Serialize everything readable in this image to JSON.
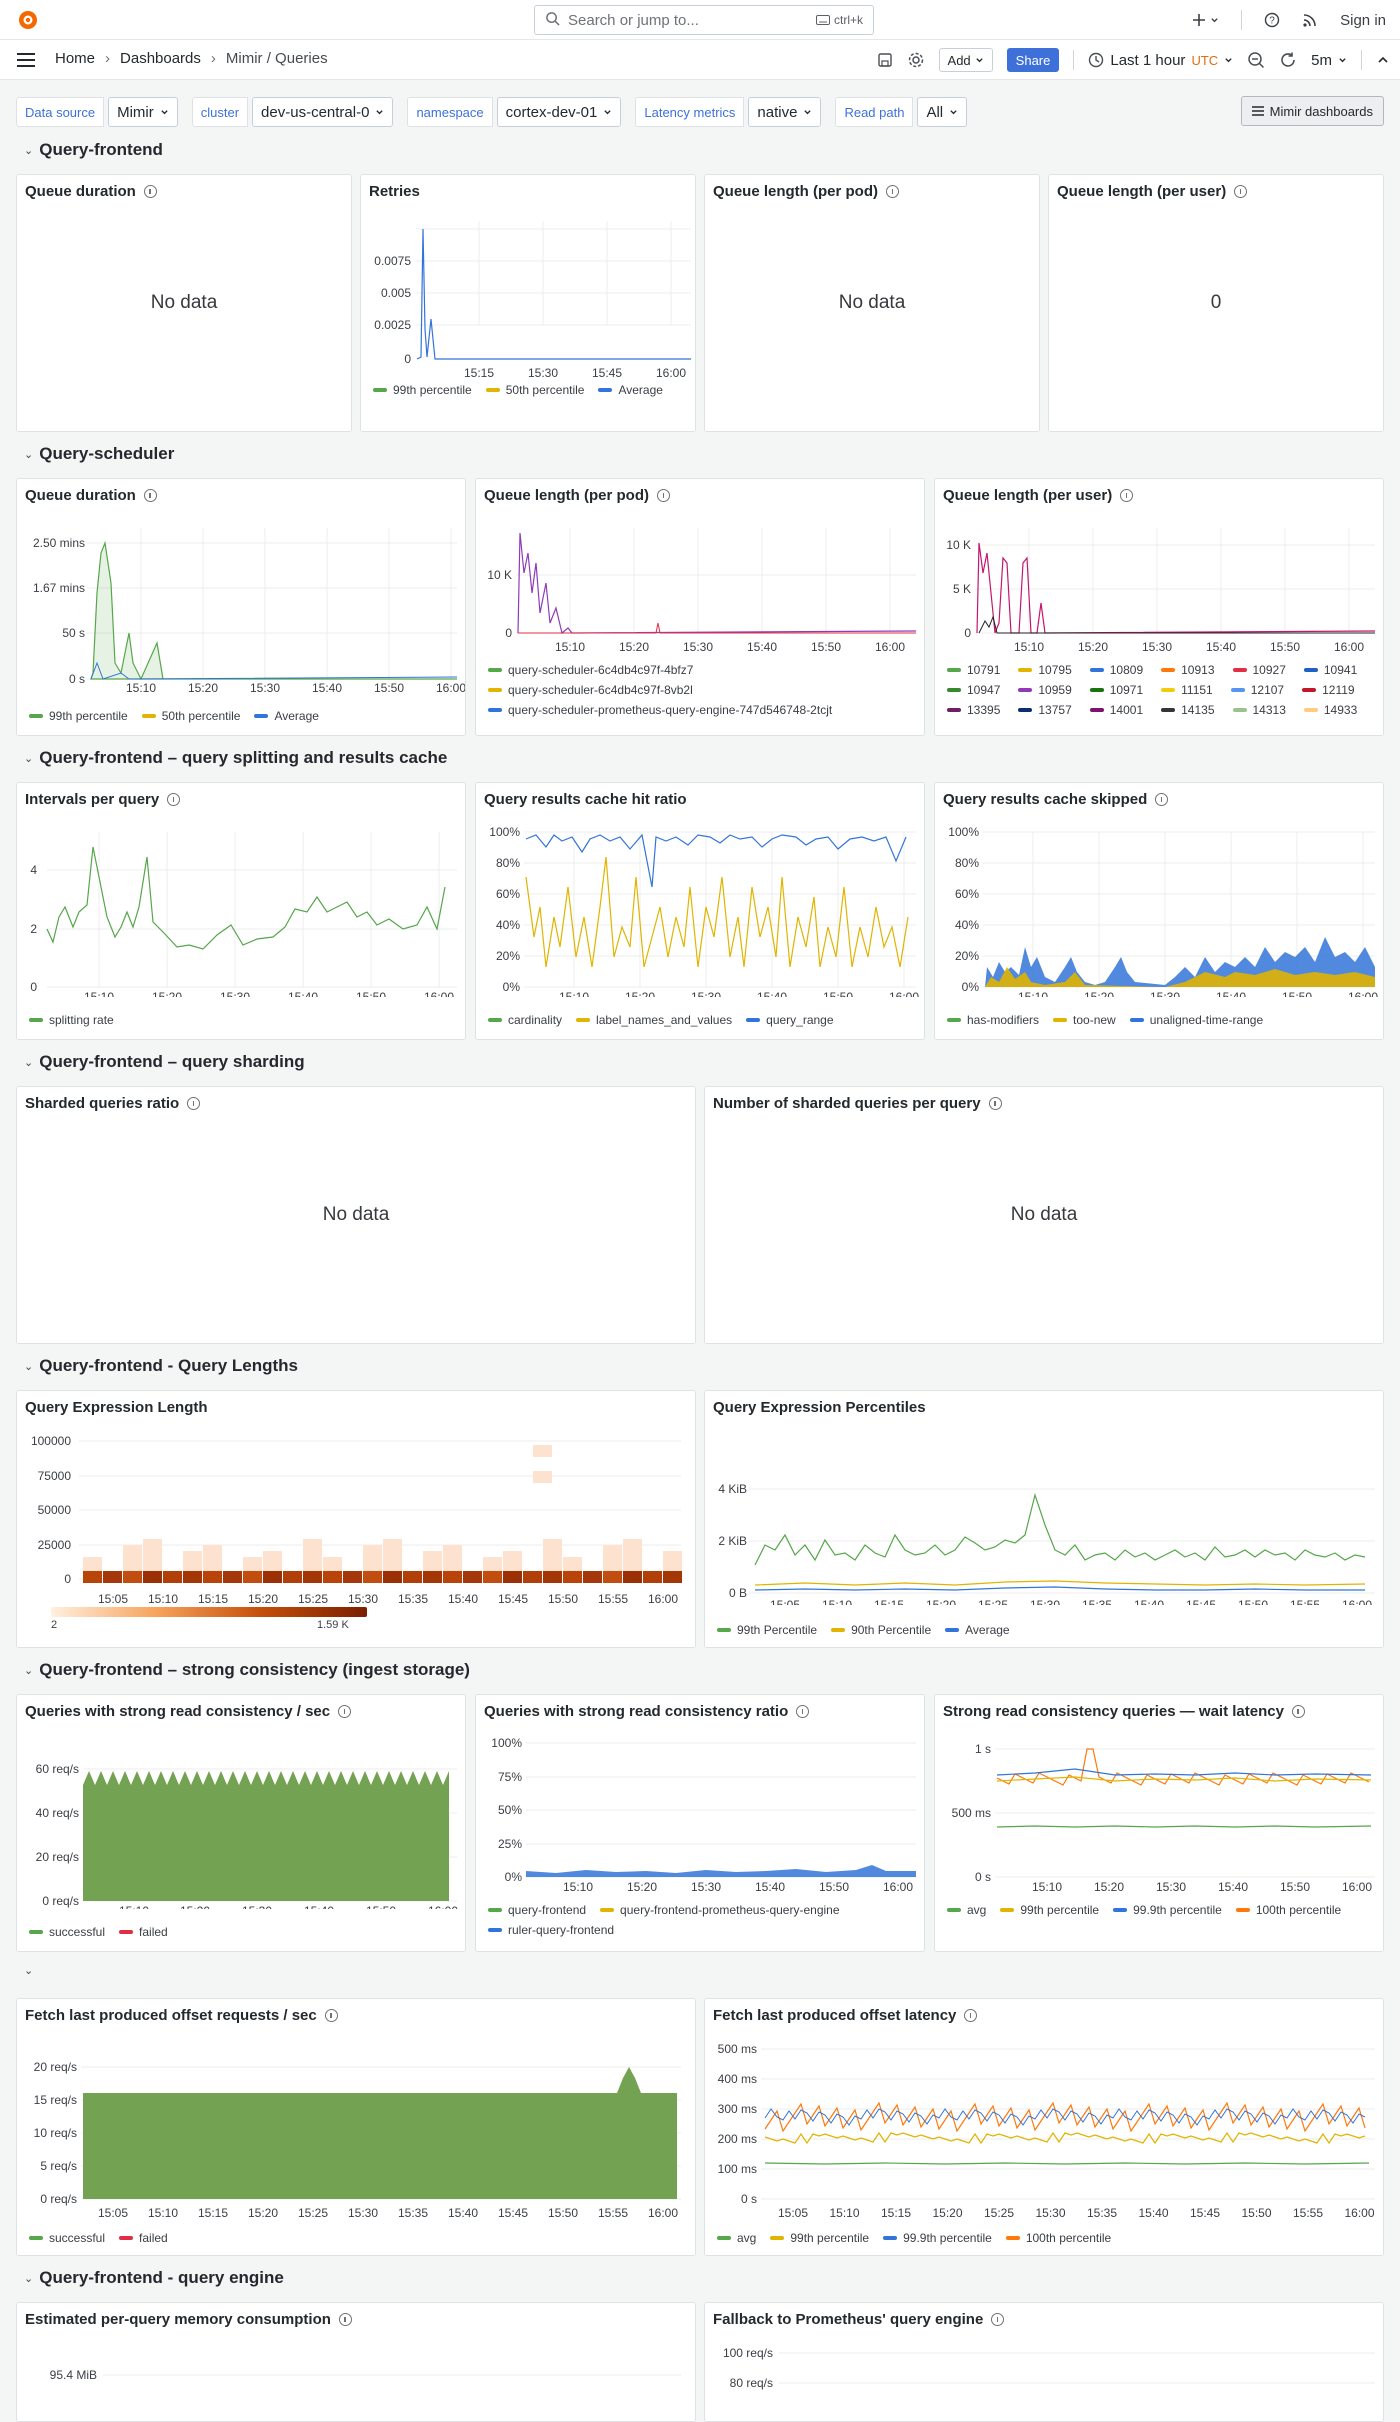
{
  "topbar": {
    "search_placeholder": "Search or jump to...",
    "search_shortcut": "ctrl+k",
    "sign_in": "Sign in"
  },
  "breadcrumbs": [
    "Home",
    "Dashboards",
    "Mimir / Queries"
  ],
  "toolbar": {
    "add": "Add",
    "share": "Share",
    "time_range": "Last 1 hour",
    "timezone": "UTC",
    "refresh": "5m"
  },
  "variables": [
    {
      "label": "Data source",
      "value": "Mimir"
    },
    {
      "label": "cluster",
      "value": "dev-us-central-0"
    },
    {
      "label": "namespace",
      "value": "cortex-dev-01"
    },
    {
      "label": "Latency metrics",
      "value": "native"
    },
    {
      "label": "Read path",
      "value": "All"
    }
  ],
  "mimir_dashboards": "Mimir dashboards",
  "colors": {
    "green": "#56a64b",
    "yellow": "#e0b400",
    "blue": "#3274d9",
    "orange": "#ff780a",
    "red": "#e02f44"
  },
  "rows": {
    "r1": "Query-frontend",
    "r2": "Query-scheduler",
    "r3": "Query-frontend – query splitting and results cache",
    "r4": "Query-frontend – query sharding",
    "r5": "Query-frontend - Query Lengths",
    "r6": "Query-frontend – strong consistency (ingest storage)",
    "r7": "",
    "r8": "Query-frontend - query engine"
  },
  "panels": {
    "p1": {
      "title": "Queue duration",
      "status": "No data"
    },
    "p2": {
      "title": "Retries",
      "legend": [
        "99th percentile",
        "50th percentile",
        "Average"
      ]
    },
    "p3": {
      "title": "Queue length (per pod)",
      "status": "No data"
    },
    "p4": {
      "title": "Queue length (per user)",
      "value": "0"
    },
    "p5": {
      "title": "Queue duration",
      "legend": [
        "99th percentile",
        "50th percentile",
        "Average"
      ]
    },
    "p6": {
      "title": "Queue length (per pod)",
      "legend": [
        "query-scheduler-6c4db4c97f-4bfz7",
        "query-scheduler-6c4db4c97f-8vb2l",
        "query-scheduler-prometheus-query-engine-747d546748-2tcjt"
      ]
    },
    "p7": {
      "title": "Queue length (per user)",
      "legend": [
        "10791",
        "10795",
        "10809",
        "10913",
        "10927",
        "10941",
        "10947",
        "10959",
        "10971",
        "11151",
        "12107",
        "12119",
        "13395",
        "13757",
        "14001",
        "14135",
        "14313",
        "14933"
      ]
    },
    "p8": {
      "title": "Intervals per query",
      "legend": [
        "splitting rate"
      ]
    },
    "p9": {
      "title": "Query results cache hit ratio",
      "legend": [
        "cardinality",
        "label_names_and_values",
        "query_range"
      ]
    },
    "p10": {
      "title": "Query results cache skipped",
      "legend": [
        "has-modifiers",
        "too-new",
        "unaligned-time-range"
      ]
    },
    "p11": {
      "title": "Sharded queries ratio",
      "status": "No data"
    },
    "p12": {
      "title": "Number of sharded queries per query",
      "status": "No data"
    },
    "p13": {
      "title": "Query Expression Length",
      "scale_min": "2",
      "scale_max": "1.59 K"
    },
    "p14": {
      "title": "Query Expression Percentiles",
      "legend": [
        "99th Percentile",
        "90th Percentile",
        "Average"
      ]
    },
    "p15": {
      "title": "Queries with strong read consistency / sec",
      "legend": [
        "successful",
        "failed"
      ]
    },
    "p16": {
      "title": "Queries with strong read consistency ratio",
      "legend": [
        "query-frontend",
        "query-frontend-prometheus-query-engine",
        "ruler-query-frontend"
      ]
    },
    "p17": {
      "title": "Strong read consistency queries — wait latency",
      "legend": [
        "avg",
        "99th percentile",
        "99.9th percentile",
        "100th percentile"
      ]
    },
    "p18": {
      "title": "Fetch last produced offset requests / sec",
      "legend": [
        "successful",
        "failed"
      ]
    },
    "p19": {
      "title": "Fetch last produced offset latency",
      "legend": [
        "avg",
        "99th percentile",
        "99.9th percentile",
        "100th percentile"
      ]
    },
    "p20": {
      "title": "Estimated per-query memory consumption"
    },
    "p21": {
      "title": "Fallback to Prometheus' query engine"
    }
  },
  "axes": {
    "x_short": [
      "15:15",
      "15:30",
      "15:45",
      "16:00"
    ],
    "x_10": [
      "15:10",
      "15:20",
      "15:30",
      "15:40",
      "15:50",
      "16:00"
    ],
    "x_5": [
      "15:05",
      "15:10",
      "15:15",
      "15:20",
      "15:25",
      "15:30",
      "15:35",
      "15:40",
      "15:45",
      "15:50",
      "15:55",
      "16:00"
    ],
    "retries_y": [
      "0.0075",
      "0.005",
      "0.0025",
      "0"
    ],
    "qs_dur_y": [
      "2.50 mins",
      "1.67 mins",
      "50 s",
      "0 s"
    ],
    "qs_pod_y": [
      "10 K",
      "0"
    ],
    "qs_user_y": [
      "10 K",
      "5 K",
      "0"
    ],
    "intervals_y": [
      "4",
      "2",
      "0"
    ],
    "pct_y": [
      "100%",
      "80%",
      "60%",
      "40%",
      "20%",
      "0%"
    ],
    "heat_y": [
      "100000",
      "75000",
      "50000",
      "25000",
      "0"
    ],
    "kib_y": [
      "4 KiB",
      "2 KiB",
      "0 B"
    ],
    "reqs60_y": [
      "60 req/s",
      "40 req/s",
      "20 req/s",
      "0 req/s"
    ],
    "pct4_y": [
      "100%",
      "75%",
      "50%",
      "25%",
      "0%"
    ],
    "wait_y": [
      "1 s",
      "500 ms",
      "0 s"
    ],
    "reqs20_y": [
      "20 req/s",
      "15 req/s",
      "10 req/s",
      "5 req/s",
      "0 req/s"
    ],
    "lat500_y": [
      "500 ms",
      "400 ms",
      "300 ms",
      "200 ms",
      "100 ms",
      "0 s"
    ],
    "mem_y": [
      "95.4 MiB"
    ],
    "fallback_y": [
      "100 req/s",
      "80 req/s"
    ]
  }
}
